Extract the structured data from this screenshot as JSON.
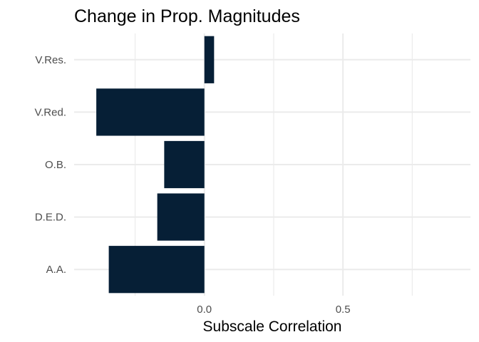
{
  "chart_data": {
    "type": "bar",
    "orientation": "horizontal",
    "title": "Change in Prop. Magnitudes",
    "xlabel": "Subscale Correlation",
    "ylabel": "",
    "categories": [
      "A.A.",
      "D.E.D.",
      "O.B.",
      "V.Red.",
      "V.Res."
    ],
    "values": [
      -0.345,
      -0.17,
      -0.145,
      -0.39,
      0.035
    ],
    "xlim": [
      -0.47,
      0.96
    ],
    "x_ticks": [
      0.0,
      0.5
    ],
    "x_tick_labels": [
      "0.0",
      "0.5"
    ],
    "grid": true,
    "bar_color": "#061f36"
  }
}
